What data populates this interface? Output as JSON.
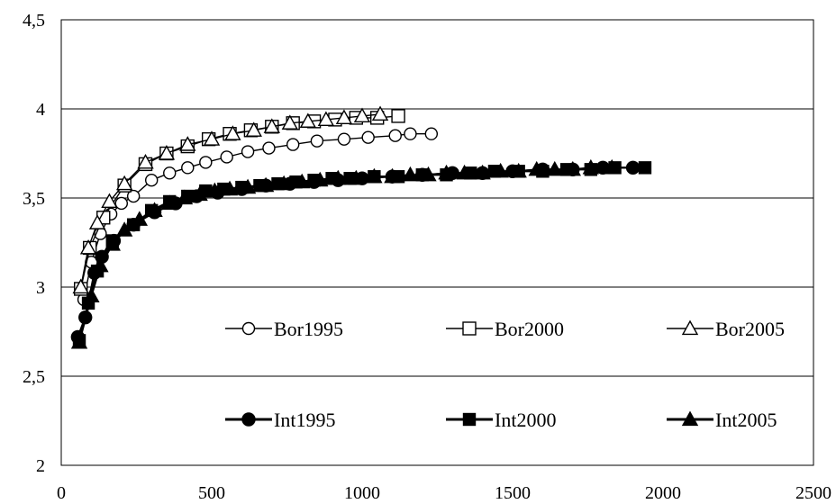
{
  "chart_data": {
    "type": "line",
    "title": "",
    "xlabel": "",
    "ylabel": "",
    "xlim": [
      0,
      2500
    ],
    "ylim": [
      2,
      4.5
    ],
    "x_ticks": [
      "0",
      "500",
      "1000",
      "1500",
      "2000",
      "2500"
    ],
    "y_ticks": [
      "2",
      "2,5",
      "3",
      "3,5",
      "4",
      "4,5"
    ],
    "grid": "horizontal",
    "legend": "inside-lower-center",
    "series": [
      {
        "name": "Bor1995",
        "marker": "circle-open",
        "x": [
          75,
          100,
          130,
          165,
          200,
          240,
          300,
          360,
          420,
          480,
          550,
          620,
          690,
          770,
          850,
          940,
          1020,
          1110,
          1160,
          1230
        ],
        "y": [
          2.93,
          3.14,
          3.3,
          3.41,
          3.47,
          3.51,
          3.6,
          3.64,
          3.67,
          3.7,
          3.73,
          3.76,
          3.78,
          3.8,
          3.82,
          3.83,
          3.84,
          3.85,
          3.86,
          3.86
        ]
      },
      {
        "name": "Bor2000",
        "marker": "square-open",
        "x": [
          65,
          95,
          140,
          210,
          280,
          350,
          420,
          490,
          560,
          630,
          700,
          770,
          840,
          910,
          980,
          1050,
          1120
        ],
        "y": [
          2.99,
          3.22,
          3.39,
          3.57,
          3.69,
          3.75,
          3.79,
          3.83,
          3.86,
          3.88,
          3.9,
          3.92,
          3.93,
          3.94,
          3.95,
          3.95,
          3.96
        ]
      },
      {
        "name": "Bor2005",
        "marker": "triangle-open",
        "x": [
          65,
          90,
          120,
          160,
          210,
          280,
          350,
          420,
          500,
          570,
          640,
          700,
          760,
          820,
          880,
          940,
          1000,
          1060
        ],
        "y": [
          3.0,
          3.22,
          3.36,
          3.48,
          3.58,
          3.7,
          3.75,
          3.8,
          3.83,
          3.86,
          3.88,
          3.9,
          3.92,
          3.93,
          3.94,
          3.95,
          3.96,
          3.97
        ]
      },
      {
        "name": "Int1995",
        "marker": "circle-filled",
        "x": [
          55,
          80,
          110,
          135,
          175,
          240,
          310,
          380,
          450,
          520,
          600,
          680,
          760,
          840,
          920,
          1000,
          1100,
          1200,
          1300,
          1400,
          1500,
          1600,
          1700,
          1800,
          1900
        ],
        "y": [
          2.72,
          2.83,
          3.08,
          3.17,
          3.26,
          3.35,
          3.42,
          3.47,
          3.51,
          3.53,
          3.55,
          3.57,
          3.58,
          3.59,
          3.6,
          3.61,
          3.62,
          3.63,
          3.64,
          3.64,
          3.65,
          3.66,
          3.66,
          3.67,
          3.67
        ]
      },
      {
        "name": "Int2000",
        "marker": "square-filled",
        "x": [
          60,
          90,
          120,
          170,
          240,
          300,
          360,
          420,
          480,
          540,
          600,
          660,
          720,
          780,
          840,
          900,
          960,
          1040,
          1120,
          1200,
          1280,
          1360,
          1440,
          1520,
          1600,
          1680,
          1760,
          1840,
          1940
        ],
        "y": [
          2.7,
          2.91,
          3.09,
          3.26,
          3.35,
          3.43,
          3.48,
          3.51,
          3.54,
          3.55,
          3.56,
          3.57,
          3.58,
          3.59,
          3.6,
          3.61,
          3.61,
          3.62,
          3.62,
          3.63,
          3.63,
          3.64,
          3.65,
          3.65,
          3.65,
          3.66,
          3.66,
          3.67,
          3.67
        ]
      },
      {
        "name": "Int2005",
        "marker": "triangle-filled",
        "x": [
          60,
          100,
          130,
          170,
          210,
          260,
          310,
          360,
          410,
          460,
          510,
          560,
          620,
          680,
          740,
          800,
          860,
          920,
          980,
          1040,
          1100,
          1160,
          1220,
          1280,
          1340,
          1400,
          1460,
          1520,
          1580,
          1640,
          1700,
          1760,
          1830
        ],
        "y": [
          2.69,
          2.95,
          3.12,
          3.24,
          3.32,
          3.38,
          3.43,
          3.47,
          3.5,
          3.52,
          3.54,
          3.55,
          3.56,
          3.57,
          3.58,
          3.59,
          3.6,
          3.61,
          3.61,
          3.62,
          3.62,
          3.63,
          3.63,
          3.64,
          3.64,
          3.64,
          3.65,
          3.65,
          3.66,
          3.66,
          3.66,
          3.67,
          3.67
        ]
      }
    ]
  }
}
